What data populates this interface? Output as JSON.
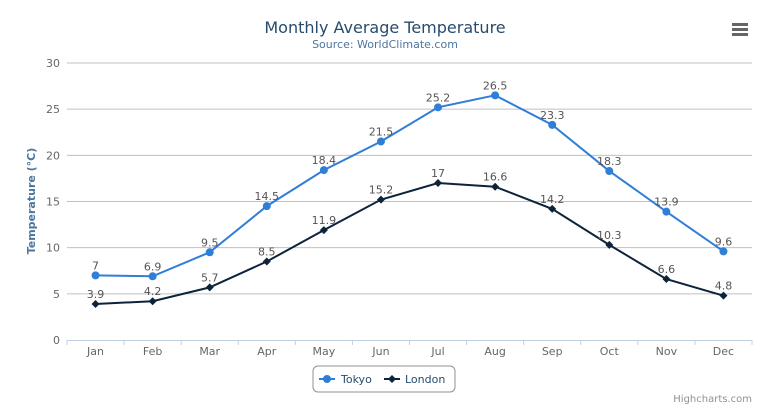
{
  "chart_data": {
    "type": "line",
    "title": "Monthly Average Temperature",
    "subtitle": "Source: WorldClimate.com",
    "ylabel": "Temperature (°C)",
    "xlabel": "",
    "categories": [
      "Jan",
      "Feb",
      "Mar",
      "Apr",
      "May",
      "Jun",
      "Jul",
      "Aug",
      "Sep",
      "Oct",
      "Nov",
      "Dec"
    ],
    "ylim": [
      0,
      30
    ],
    "yticks": [
      0,
      5,
      10,
      15,
      20,
      25,
      30
    ],
    "grid": true,
    "legend": "bottom-center",
    "series": [
      {
        "name": "Tokyo",
        "color": "#2f7ed8",
        "marker": "circle",
        "values": [
          7,
          6.9,
          9.5,
          14.5,
          18.4,
          21.5,
          25.2,
          26.5,
          23.3,
          18.3,
          13.9,
          9.6
        ]
      },
      {
        "name": "London",
        "color": "#0d233a",
        "marker": "diamond",
        "values": [
          3.9,
          4.2,
          5.7,
          8.5,
          11.9,
          15.2,
          17,
          16.6,
          14.2,
          10.3,
          6.6,
          4.8
        ]
      }
    ]
  },
  "credits": "Highcharts.com",
  "menu_icon": "hamburger-menu-icon"
}
